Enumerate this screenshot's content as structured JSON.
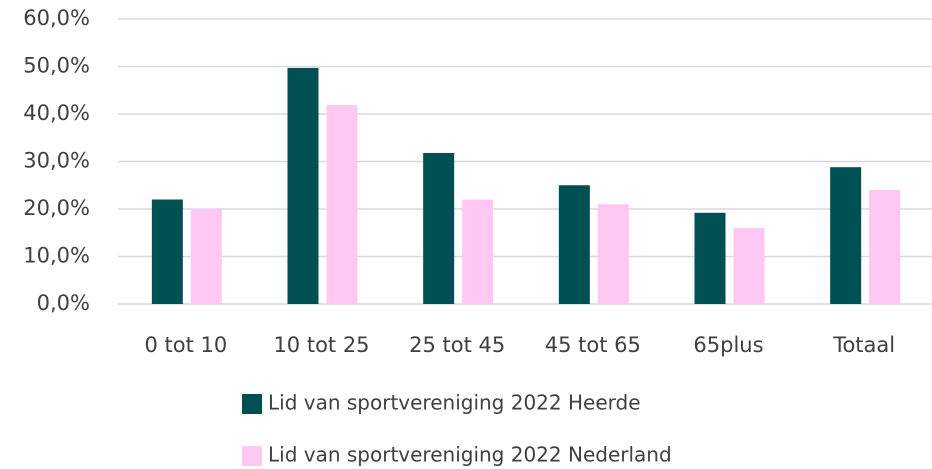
{
  "chart_data": {
    "type": "bar",
    "categories": [
      "0 tot 10",
      "10 tot 25",
      "25 tot 45",
      "45 tot 65",
      "65plus",
      "Totaal"
    ],
    "series": [
      {
        "name": "Lid van sportvereniging 2022 Heerde",
        "color": "#004f52",
        "values": [
          22,
          49.7,
          31.8,
          25,
          19.2,
          28.8
        ]
      },
      {
        "name": "Lid van sportvereniging 2022 Nederland",
        "color": "#ffc7f2",
        "values": [
          20,
          41.9,
          22,
          21,
          16,
          24
        ]
      }
    ],
    "ylim": [
      0,
      60
    ],
    "yticks": [
      {
        "value": 0,
        "label": "0,0%"
      },
      {
        "value": 10,
        "label": "10,0%"
      },
      {
        "value": 20,
        "label": "20,0%"
      },
      {
        "value": 30,
        "label": "30,0%"
      },
      {
        "value": 40,
        "label": "40,0%"
      },
      {
        "value": 50,
        "label": "50,0%"
      },
      {
        "value": 60,
        "label": "60,0%"
      }
    ],
    "grid": true,
    "legend": "bottom"
  }
}
